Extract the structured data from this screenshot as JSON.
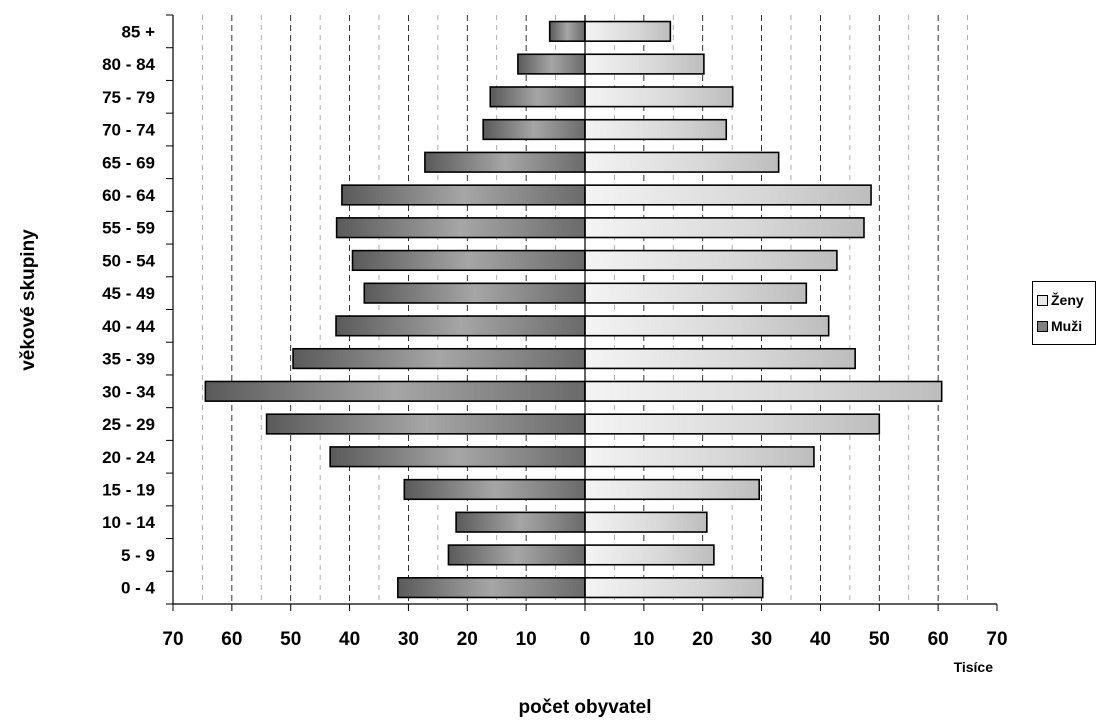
{
  "chart_data": {
    "type": "bar",
    "orientation": "horizontal",
    "layout": "population-pyramid",
    "title": "",
    "xlabel": "počet obyvatel",
    "xunit": "Tisíce",
    "ylabel": "věkové skupiny",
    "categories": [
      "0 -  4",
      "5 -  9",
      "10 - 14",
      "15 - 19",
      "20 - 24",
      "25 - 29",
      "30 - 34",
      "35 - 39",
      "40 - 44",
      "45 - 49",
      "50 - 54",
      "55 - 59",
      "60 - 64",
      "65 - 69",
      "70 - 74",
      "75 - 79",
      "80 - 84",
      "85 +"
    ],
    "series": [
      {
        "name": "Ženy",
        "side": "right",
        "color": "#e8e8e8",
        "values": [
          30.2,
          21.9,
          20.7,
          29.6,
          38.9,
          50.0,
          60.6,
          45.9,
          41.4,
          37.6,
          42.8,
          47.4,
          48.6,
          32.9,
          24.0,
          25.1,
          20.2,
          14.5
        ]
      },
      {
        "name": "Muži",
        "side": "left",
        "color": "#808080",
        "values": [
          31.8,
          23.2,
          21.9,
          30.7,
          43.3,
          54.1,
          64.5,
          49.6,
          42.3,
          37.5,
          39.5,
          42.2,
          41.3,
          27.2,
          17.3,
          16.1,
          11.4,
          6.0
        ]
      }
    ],
    "xlim": [
      -70,
      70
    ],
    "xticks": [
      "70",
      "60",
      "50",
      "40",
      "30",
      "20",
      "10",
      "0",
      "10",
      "20",
      "30",
      "40",
      "50",
      "60",
      "70"
    ],
    "grid": "vertical dashed",
    "legend_position": "right"
  }
}
